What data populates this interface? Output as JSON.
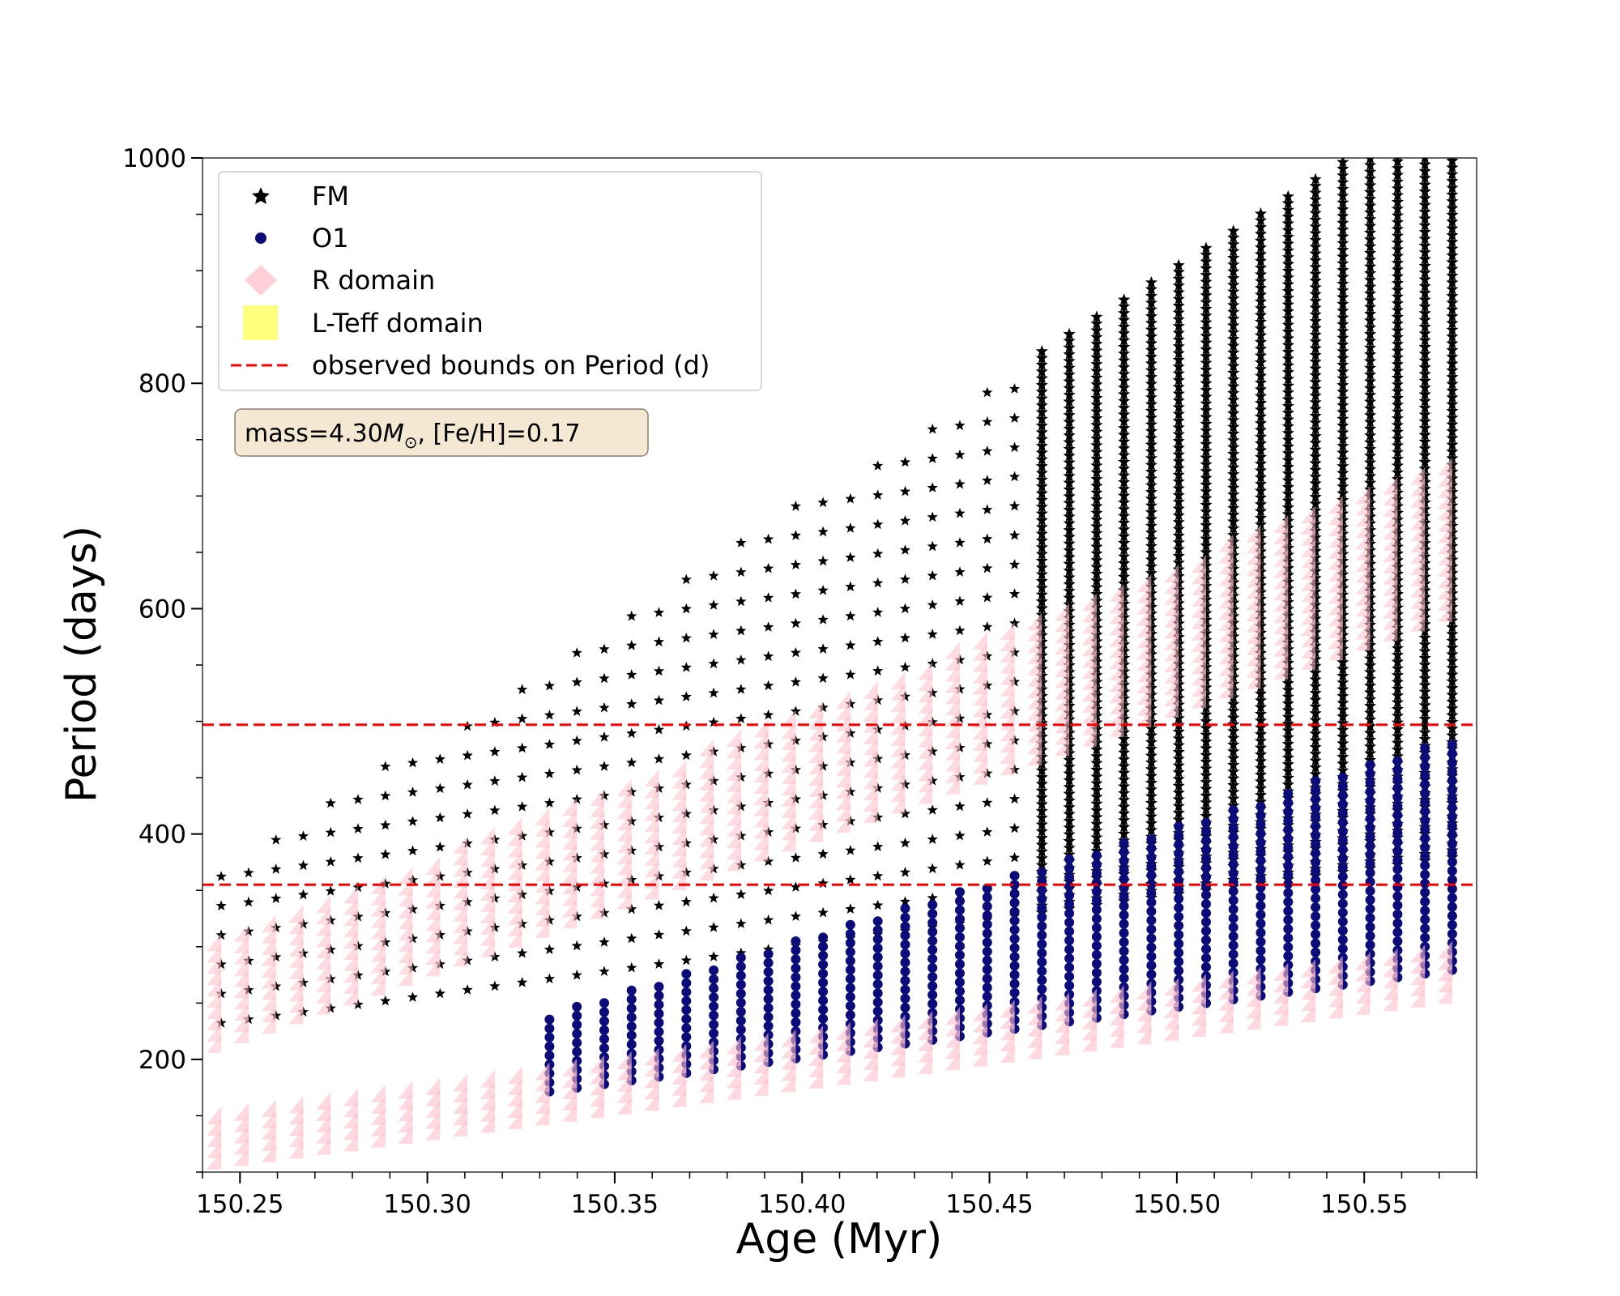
{
  "chart_data": {
    "type": "scatter",
    "xlabel": "Age (Myr)",
    "ylabel": "Period (days)",
    "xlim": [
      150.24,
      150.58
    ],
    "ylim": [
      100,
      1000
    ],
    "x_ticks": [
      150.25,
      150.3,
      150.35,
      150.4,
      150.45,
      150.5,
      150.55
    ],
    "x_tick_labels": [
      "150.25",
      "150.30",
      "150.35",
      "150.40",
      "150.45",
      "150.50",
      "150.55"
    ],
    "y_ticks": [
      200,
      400,
      600,
      800,
      1000
    ],
    "y_tick_labels": [
      "200",
      "400",
      "600",
      "800",
      "1000"
    ],
    "grid": false,
    "legend_position": "top-left",
    "annotation": "mass=4.30M_⊙, [Fe/H]=0.17",
    "annotation_parts": {
      "prefix": "mass=4.30",
      "symbol": "M",
      "subscript": "⊙",
      "suffix": ", [Fe/H]=0.17"
    },
    "series": [
      {
        "name": "FM",
        "marker": "star",
        "color": "#000000",
        "description_points": [
          [
            150.25,
            240
          ],
          [
            150.3,
            360
          ],
          [
            150.35,
            440
          ],
          [
            150.4,
            530
          ],
          [
            150.45,
            640
          ],
          [
            150.5,
            760
          ],
          [
            150.55,
            880
          ],
          [
            150.575,
            1000
          ]
        ]
      },
      {
        "name": "O1",
        "marker": "circle",
        "color": "#0b0b7a",
        "description_points": [
          [
            150.35,
            270
          ],
          [
            150.4,
            300
          ],
          [
            150.45,
            330
          ],
          [
            150.5,
            370
          ],
          [
            150.55,
            420
          ],
          [
            150.575,
            490
          ]
        ]
      },
      {
        "name": "R domain",
        "marker": "diamond",
        "color": "#ffc0cb",
        "upper_band": {
          "x_start": 150.24,
          "x_end": 150.575,
          "y_low_start": 200,
          "y_low_end": 590,
          "y_high_start": 290,
          "y_high_end": 730
        },
        "lower_band": {
          "x_start": 150.24,
          "x_end": 150.575,
          "y_low_start": 100,
          "y_low_end": 250,
          "y_high_start": 140,
          "y_high_end": 290
        }
      },
      {
        "name": "L-Teff domain",
        "marker": "square",
        "color": "#ffff66"
      },
      {
        "name": "observed bounds on Period (d)",
        "marker": "dashed-line",
        "color": "#ff0000",
        "values": [
          355,
          497
        ]
      }
    ]
  }
}
